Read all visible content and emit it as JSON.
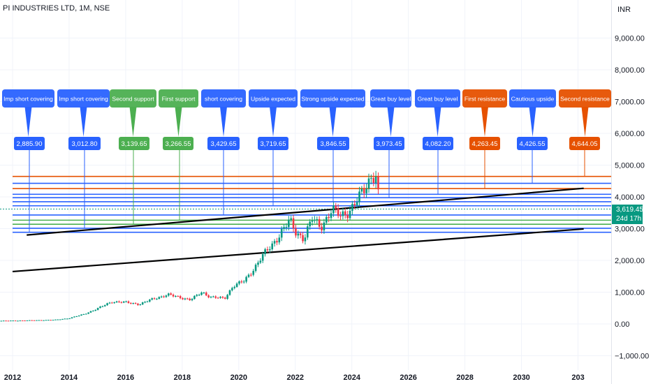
{
  "header": {
    "title": "PI INDUSTRIES LTD, 1M, NSE",
    "currency": "INR"
  },
  "price": {
    "last": "3,619.45",
    "countdown": "24d 17h"
  },
  "colors": {
    "up": "#089981",
    "down": "#f23645",
    "blue": "#2962ff",
    "green": "#4caf50",
    "orange": "#e65100",
    "trend": "#000000"
  },
  "chart_data": {
    "type": "candlestick",
    "xlabel": "",
    "ylabel": "",
    "ylim": [
      -1000,
      10000
    ],
    "xlim": [
      2012.0,
      2033.0
    ],
    "x_ticks": [
      "2012",
      "2014",
      "2016",
      "2018",
      "2020",
      "2022",
      "2024",
      "2026",
      "2028",
      "2030",
      "203"
    ],
    "y_ticks": [
      "9,000.00",
      "8,000.00",
      "7,000.00",
      "6,000.00",
      "5,000.00",
      "4,000.00",
      "3,000.00",
      "2,000.00",
      "1,000.00",
      "0.00",
      "−1,000.00"
    ],
    "y_tick_values": [
      9000,
      8000,
      7000,
      6000,
      5000,
      4000,
      3000,
      2000,
      1000,
      0,
      -1000
    ],
    "price_path": [
      [
        2011.6,
        100
      ],
      [
        2012.5,
        110
      ],
      [
        2013.5,
        130
      ],
      [
        2014.0,
        180
      ],
      [
        2014.5,
        300
      ],
      [
        2015.0,
        480
      ],
      [
        2015.5,
        700
      ],
      [
        2016.0,
        680
      ],
      [
        2016.5,
        620
      ],
      [
        2017.0,
        800
      ],
      [
        2017.5,
        920
      ],
      [
        2018.0,
        820
      ],
      [
        2018.3,
        760
      ],
      [
        2018.7,
        1000
      ],
      [
        2019.0,
        850
      ],
      [
        2019.5,
        800
      ],
      [
        2019.8,
        1200
      ],
      [
        2020.2,
        1350
      ],
      [
        2020.5,
        1700
      ],
      [
        2020.8,
        2100
      ],
      [
        2021.2,
        2500
      ],
      [
        2021.5,
        2900
      ],
      [
        2021.8,
        3250
      ],
      [
        2022.0,
        2900
      ],
      [
        2022.3,
        2700
      ],
      [
        2022.6,
        3300
      ],
      [
        2022.9,
        3050
      ],
      [
        2023.3,
        3600
      ],
      [
        2023.6,
        3400
      ],
      [
        2023.9,
        3550
      ],
      [
        2024.2,
        3900
      ],
      [
        2024.5,
        4300
      ],
      [
        2024.7,
        4700
      ],
      [
        2024.85,
        4650
      ],
      [
        2025.0,
        3619
      ]
    ],
    "levels": [
      {
        "label": "Imp short covering",
        "value": "2,885.90",
        "level": 2885.9,
        "color": "blue"
      },
      {
        "label": "Imp short covering",
        "value": "3,012.80",
        "level": 3012.8,
        "color": "blue"
      },
      {
        "label": "Second support",
        "value": "3,139.65",
        "level": 3139.65,
        "color": "green"
      },
      {
        "label": "First support",
        "value": "3,266.55",
        "level": 3266.55,
        "color": "green"
      },
      {
        "label": "short covering",
        "value": "3,429.65",
        "level": 3429.65,
        "color": "blue"
      },
      {
        "label": "Upside expected",
        "value": "3,719.65",
        "level": 3719.65,
        "color": "blue"
      },
      {
        "label": "Strong upside expected",
        "value": "3,846.55",
        "level": 3846.55,
        "color": "blue"
      },
      {
        "label": "Great buy level",
        "value": "3,973.45",
        "level": 3973.45,
        "color": "blue"
      },
      {
        "label": "Great buy level",
        "value": "4,082.20",
        "level": 4082.2,
        "color": "blue"
      },
      {
        "label": "First resistance",
        "value": "4,263.45",
        "level": 4263.45,
        "color": "orange"
      },
      {
        "label": "Cautious upside",
        "value": "4,426.55",
        "level": 4426.55,
        "color": "blue"
      },
      {
        "label": "Second resistance",
        "value": "4,644.05",
        "level": 4644.05,
        "color": "orange"
      }
    ],
    "trendlines": [
      {
        "from": [
          2012.0,
          1650
        ],
        "to": [
          2032.2,
          2990
        ]
      },
      {
        "from": [
          2012.5,
          2800
        ],
        "to": [
          2032.2,
          4270
        ]
      }
    ],
    "grid": true
  }
}
